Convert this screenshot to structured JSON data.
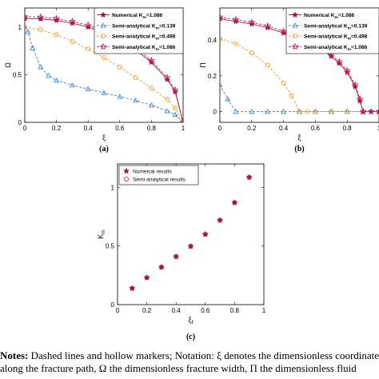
{
  "notes": {
    "label": "Notes:",
    "line1": "Dashed lines and hollow markers; Notation: ξ denotes the dimensionless coordinate",
    "line2": "along the fracture path, Ω the dimensionless fracture width, Π the dimensionless fluid"
  },
  "colors": {
    "numerical": "#9b1b3a",
    "semi_0139": "#3a7fc4",
    "semi_0498": "#e0a020",
    "semi_1086": "#c2185b"
  },
  "chart_data": [
    {
      "id": "a",
      "type": "line",
      "panel_label": "(a)",
      "xlabel": "ξ",
      "ylabel": "Ω",
      "xlim": [
        0,
        1
      ],
      "ylim": [
        0,
        1.2
      ],
      "xticks": [
        "0",
        "0.2",
        "0.4",
        "0.6",
        "0.8",
        "1"
      ],
      "yticks": [
        "0",
        "0.5",
        "1"
      ],
      "legend_position": "top-right",
      "series": [
        {
          "name": "Numerical K_m=1.086",
          "style": "solid-filled-star",
          "x": [
            0,
            0.1,
            0.2,
            0.3,
            0.4,
            0.5,
            0.6,
            0.7,
            0.8,
            0.9,
            0.95,
            1.0
          ],
          "values": [
            1.09,
            1.085,
            1.07,
            1.04,
            1.0,
            0.94,
            0.86,
            0.76,
            0.63,
            0.45,
            0.32,
            0.0
          ]
        },
        {
          "name": "Semi-analytical K_m=0.139",
          "style": "dashed-hollow-triangle",
          "x": [
            0,
            0.02,
            0.05,
            0.1,
            0.15,
            0.2,
            0.3,
            0.4,
            0.5,
            0.6,
            0.7,
            0.8,
            0.9,
            0.95,
            1.0
          ],
          "values": [
            1.0,
            0.95,
            0.78,
            0.58,
            0.49,
            0.44,
            0.39,
            0.35,
            0.31,
            0.27,
            0.23,
            0.18,
            0.12,
            0.08,
            0.0
          ]
        },
        {
          "name": "Semi-analytical K_m=0.498",
          "style": "dashed-hollow-circle",
          "x": [
            0,
            0.1,
            0.2,
            0.3,
            0.4,
            0.5,
            0.6,
            0.7,
            0.8,
            0.9,
            0.95,
            1.0
          ],
          "values": [
            1.0,
            0.97,
            0.92,
            0.85,
            0.77,
            0.68,
            0.58,
            0.47,
            0.36,
            0.24,
            0.15,
            0.0
          ]
        },
        {
          "name": "Semi-analytical K_m=1.086",
          "style": "dashed-hollow-star",
          "x": [
            0,
            0.1,
            0.2,
            0.3,
            0.4,
            0.5,
            0.6,
            0.7,
            0.8,
            0.9,
            0.95,
            1.0
          ],
          "values": [
            1.11,
            1.105,
            1.09,
            1.06,
            1.02,
            0.96,
            0.88,
            0.78,
            0.65,
            0.47,
            0.34,
            0.0
          ]
        }
      ]
    },
    {
      "id": "b",
      "type": "line",
      "panel_label": "(b)",
      "xlabel": "ξ",
      "ylabel": "Π",
      "xlim": [
        0,
        1
      ],
      "ylim": [
        -0.06,
        0.58
      ],
      "xticks": [
        "0",
        "0.2",
        "0.4",
        "0.6",
        "0.8",
        "1"
      ],
      "yticks": [
        "0",
        "0.2",
        "0.4"
      ],
      "legend_position": "top-right",
      "series": [
        {
          "name": "Numerical K_m=1.086",
          "style": "solid-filled-star",
          "x": [
            0,
            0.1,
            0.2,
            0.3,
            0.4,
            0.5,
            0.6,
            0.7,
            0.75,
            0.8,
            0.85,
            0.88,
            0.9,
            0.95,
            1.0
          ],
          "values": [
            0.52,
            0.505,
            0.49,
            0.47,
            0.44,
            0.41,
            0.37,
            0.31,
            0.27,
            0.22,
            0.14,
            0.06,
            0.0,
            0.0,
            0.0
          ]
        },
        {
          "name": "Semi-analytical K_m=0.139",
          "style": "dashed-hollow-triangle",
          "x": [
            0,
            0.05,
            0.1,
            0.2,
            0.3,
            0.4,
            0.5,
            0.6,
            0.7,
            0.8,
            0.9,
            1.0
          ],
          "values": [
            0.15,
            0.07,
            0.0,
            0.0,
            0.0,
            0.0,
            0.0,
            0.0,
            0.0,
            0.0,
            0.0,
            0.0
          ]
        },
        {
          "name": "Semi-analytical K_m=0.498",
          "style": "dashed-hollow-circle",
          "x": [
            0,
            0.1,
            0.2,
            0.3,
            0.4,
            0.45,
            0.5,
            0.55,
            0.6,
            0.7,
            0.8,
            0.9,
            1.0
          ],
          "values": [
            0.41,
            0.38,
            0.33,
            0.26,
            0.16,
            0.09,
            0.0,
            0.0,
            0.0,
            0.0,
            0.0,
            0.0,
            0.0
          ]
        },
        {
          "name": "Semi-analytical K_m=1.086",
          "style": "dashed-hollow-star",
          "x": [
            0,
            0.1,
            0.2,
            0.3,
            0.4,
            0.5,
            0.6,
            0.7,
            0.75,
            0.8,
            0.85,
            0.88,
            0.9,
            0.95,
            1.0
          ],
          "values": [
            0.53,
            0.515,
            0.5,
            0.48,
            0.45,
            0.42,
            0.38,
            0.32,
            0.28,
            0.23,
            0.15,
            0.07,
            0.0,
            0.0,
            0.0
          ]
        }
      ]
    },
    {
      "id": "c",
      "type": "scatter",
      "panel_label": "(c)",
      "xlabel": "ξ_f",
      "ylabel": "K_m",
      "xlim": [
        0,
        1
      ],
      "ylim": [
        0,
        1.2
      ],
      "xticks": [
        "0",
        "0.2",
        "0.4",
        "0.6",
        "0.8",
        "1"
      ],
      "yticks": [
        "0",
        "0.5",
        "1"
      ],
      "legend_position": "top-left",
      "series": [
        {
          "name": "Numeical results",
          "style": "filled-star",
          "x": [
            0.1,
            0.2,
            0.3,
            0.4,
            0.5,
            0.6,
            0.7,
            0.8,
            0.9
          ],
          "values": [
            0.139,
            0.23,
            0.32,
            0.41,
            0.498,
            0.6,
            0.72,
            0.87,
            1.086
          ]
        },
        {
          "name": "Semi-analytical results",
          "style": "hollow-circle",
          "x": [
            0.1,
            0.2,
            0.3,
            0.4,
            0.5,
            0.6,
            0.7,
            0.8,
            0.9
          ],
          "values": [
            0.139,
            0.23,
            0.32,
            0.41,
            0.498,
            0.6,
            0.72,
            0.87,
            1.086
          ]
        }
      ]
    }
  ]
}
